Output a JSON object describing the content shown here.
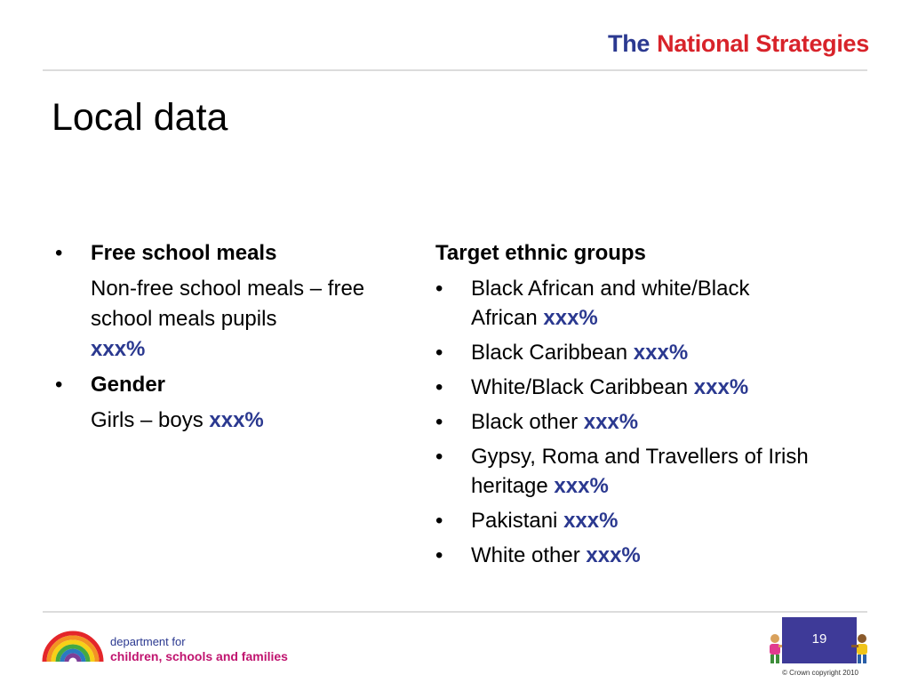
{
  "brand": {
    "the": "The",
    "name": "National Strategies"
  },
  "title": "Local data",
  "left": {
    "items": [
      {
        "heading": "Free school meals",
        "detail": "Non-free school meals – free school meals pupils",
        "value": "xxx%"
      },
      {
        "heading": "Gender",
        "detail": "Girls – boys",
        "value": "xxx%"
      }
    ]
  },
  "right": {
    "heading": "Target ethnic groups",
    "items": [
      {
        "label": "Black African and white/Black African",
        "value": "xxx%"
      },
      {
        "label": "Black Caribbean",
        "value": "xxx%"
      },
      {
        "label": "White/Black Caribbean",
        "value": "xxx%"
      },
      {
        "label": "Black other",
        "value": "xxx%"
      },
      {
        "label": "Gypsy, Roma and Travellers of Irish heritage",
        "value": "xxx%"
      },
      {
        "label": "Pakistani",
        "value": "xxx%"
      },
      {
        "label": "White other",
        "value": "xxx%"
      }
    ]
  },
  "footer": {
    "dept_line1": "department for",
    "dept_line2": "children, schools and families",
    "page_number": "19",
    "copyright": "© Crown copyright 2010"
  },
  "bullet": "•",
  "colors": {
    "accent_blue": "#2b3990",
    "accent_red": "#d8232a",
    "dept_magenta": "#c0146f"
  },
  "icons": [
    "rainbow-logo-icon",
    "child-left-icon",
    "child-right-icon"
  ]
}
